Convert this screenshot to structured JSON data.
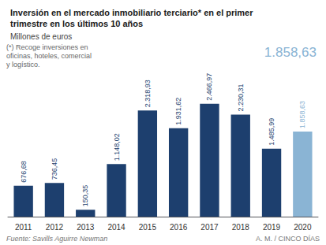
{
  "chart_data": {
    "type": "bar",
    "title": "Inversión en el mercado inmobiliario terciario* en el primer\ntrimestre en los últimos 10 años",
    "subtitle": "Millones de euros",
    "annotations": [
      "(*) Recoge inversiones en\noficinas, hoteles, comercial\ny logístico.",
      "Fuente: Savills Aguirre Newman",
      "A. M. / CINCO DÍAS",
      "1.858,63"
    ],
    "categories": [
      "2011",
      "2012",
      "2013",
      "2014",
      "2015",
      "2016",
      "2017",
      "2018",
      "2019",
      "2020"
    ],
    "values": [
      676.68,
      736.45,
      150.35,
      1148.02,
      2318.93,
      1931.62,
      2466.97,
      2230.31,
      1485.99,
      1858.63
    ],
    "value_labels": [
      "676,68",
      "736,45",
      "150,35",
      "1.148,02",
      "2.318,93",
      "1.931,62",
      "2.466,97",
      "2.230,31",
      "1.485,99",
      "1.858,63"
    ],
    "data_labels": true,
    "colors": [
      "#1d3f6e",
      "#1d3f6e",
      "#1d3f6e",
      "#1d3f6e",
      "#1d3f6e",
      "#1d3f6e",
      "#1d3f6e",
      "#1d3f6e",
      "#1d3f6e",
      "#8ab4d4"
    ],
    "ylim": [
      0,
      3100
    ],
    "tick_labels": "x",
    "grid": false
  }
}
